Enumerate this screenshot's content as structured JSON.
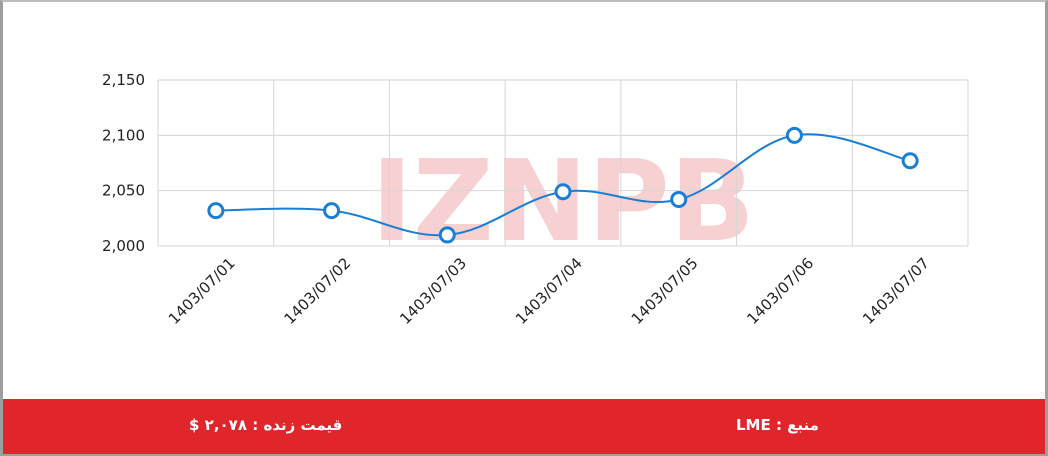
{
  "chart_data": {
    "type": "line",
    "categories": [
      "1403/07/01",
      "1403/07/02",
      "1403/07/03",
      "1403/07/04",
      "1403/07/05",
      "1403/07/06",
      "1403/07/07"
    ],
    "series": [
      {
        "values": [
          2032,
          2032,
          2010,
          2049,
          2042,
          2100,
          2077
        ]
      }
    ],
    "yticks": [
      "2,000",
      "2,050",
      "2,100",
      "2,150"
    ],
    "ylim": [
      2000,
      2150
    ],
    "grid": true,
    "title": "",
    "xlabel": "",
    "ylabel": "",
    "line_color": "#1a7fd4"
  },
  "watermark": {
    "text": "IZNPB"
  },
  "footer": {
    "live_price": "قیمت زنده : ۲,۰۷۸ $",
    "source": "منبع : LME",
    "background": "#e0262b"
  }
}
